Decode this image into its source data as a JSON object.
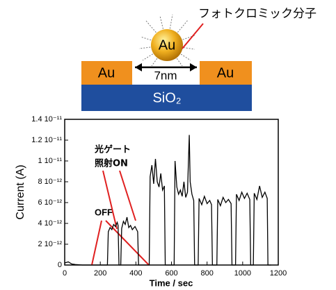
{
  "diagram": {
    "ball_label": "Au",
    "left_pad_label": "Au",
    "right_pad_label": "Au",
    "gap_label": "7nm",
    "substrate_label": "SiO₂",
    "molecule_label": "フォトクロミック分子"
  },
  "chart_data": {
    "type": "line",
    "y_label": "Current (A)",
    "x_label": "Time / sec",
    "annotations": [
      "光ゲート",
      "照射ON",
      "OFF"
    ],
    "xlim": [
      0,
      1200
    ],
    "xticks": [
      0,
      200,
      400,
      600,
      800,
      1000,
      1200
    ],
    "ylim": [
      0,
      1.4e-11
    ],
    "yticks": [
      0,
      {
        "value": 2e-12,
        "label": "2 10⁻¹²"
      },
      {
        "value": 4e-12,
        "label": "4 10⁻¹²"
      },
      {
        "value": 6e-12,
        "label": "6 10⁻¹²"
      },
      {
        "value": 8e-12,
        "label": "8 10⁻¹²"
      },
      {
        "value": 1e-11,
        "label": "1 10⁻¹¹"
      },
      {
        "value": 1.2e-11,
        "label": "1.2 10⁻¹¹"
      },
      {
        "value": 1.4e-11,
        "label": "1.4 10⁻¹¹"
      }
    ],
    "series": [
      {
        "color": "#000000",
        "x": [
          0,
          20,
          40,
          60,
          100,
          150,
          200,
          240,
          245,
          255,
          265,
          275,
          285,
          295,
          300,
          305,
          315,
          320,
          330,
          340,
          350,
          360,
          370,
          380,
          395,
          410,
          415,
          475,
          480,
          490,
          500,
          510,
          520,
          530,
          540,
          550,
          560,
          565,
          615,
          620,
          630,
          640,
          650,
          660,
          670,
          680,
          690,
          700,
          705,
          715,
          725,
          730,
          750,
          755,
          770,
          785,
          800,
          815,
          825,
          830,
          855,
          860,
          875,
          890,
          905,
          920,
          935,
          940,
          960,
          965,
          980,
          995,
          1010,
          1025,
          1040,
          1045,
          1060,
          1065,
          1080,
          1095,
          1110,
          1125,
          1138,
          1142,
          1160
        ],
        "values": [
          2e-13,
          3e-13,
          1e-13,
          5e-14,
          0,
          0,
          0,
          0,
          3.2e-12,
          3.6e-12,
          3.4e-12,
          3.9e-12,
          3.7e-12,
          4.1e-12,
          3.8e-12,
          0,
          0,
          3.5e-12,
          4.2e-12,
          3.9e-12,
          4.6e-12,
          3.6e-12,
          3.8e-12,
          3.4e-12,
          3.7e-12,
          3.2e-12,
          0,
          0,
          8.5e-12,
          9.6e-12,
          7.8e-12,
          1.02e-11,
          8e-12,
          7.5e-12,
          8.8e-12,
          7.2e-12,
          7.6e-12,
          0,
          0,
          1e-11,
          7.5e-12,
          6.8e-12,
          7.2e-12,
          6.6e-12,
          8e-12,
          6.5e-12,
          7e-12,
          1.25e-11,
          8e-12,
          6.8e-12,
          6.2e-12,
          0,
          0,
          6.4e-12,
          5.8e-12,
          6.6e-12,
          5.9e-12,
          6.2e-12,
          5.8e-12,
          0,
          0,
          6.3e-12,
          5.7e-12,
          6.5e-12,
          6e-12,
          6.3e-12,
          5.9e-12,
          0,
          0,
          6.8e-12,
          6.2e-12,
          7e-12,
          6.4e-12,
          6.9e-12,
          6.3e-12,
          0,
          0,
          6.9e-12,
          6.3e-12,
          7.6e-12,
          6.5e-12,
          7e-12,
          6.4e-12,
          0,
          0
        ]
      }
    ]
  }
}
